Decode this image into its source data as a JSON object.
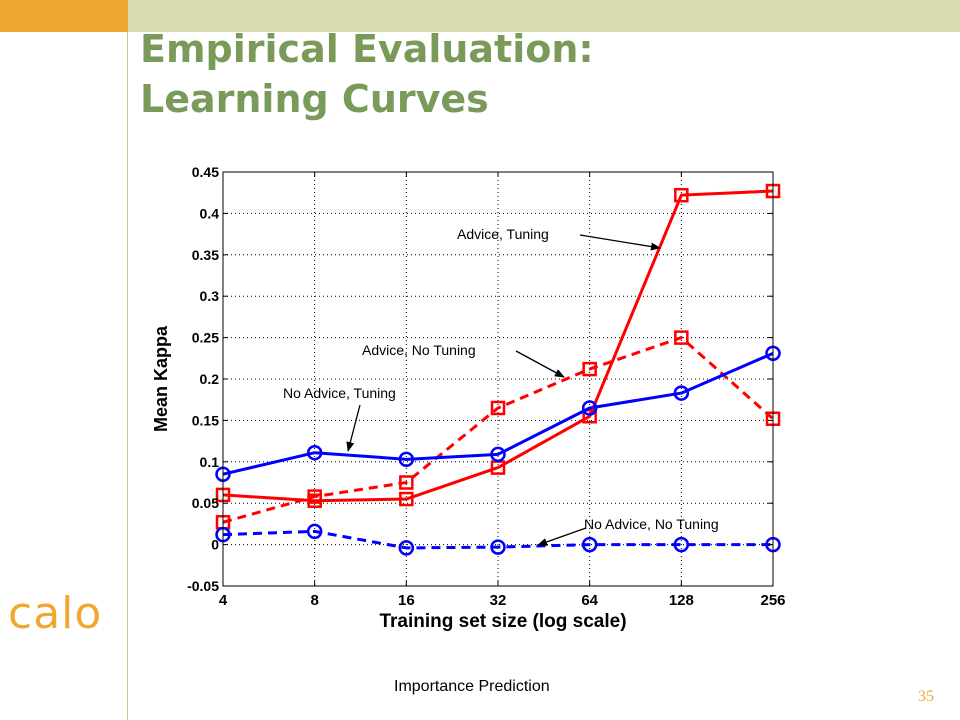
{
  "slide": {
    "title": "Empirical Evaluation:\nLearning Curves",
    "logo_text": "calo",
    "footer": "Importance Prediction",
    "page_number": "35"
  },
  "colors": {
    "top_band": "#d8dcb0",
    "corner_block": "#f0a830",
    "title": "#7a9a5a",
    "logo": "#f0a830",
    "page_number": "#f0a830",
    "series_red": "#ff0000",
    "series_blue": "#0000ff"
  },
  "chart_data": {
    "type": "line",
    "xlabel": "Training set size (log scale)",
    "ylabel": "Mean Kappa",
    "x_scale": "log2",
    "x": [
      4,
      8,
      16,
      32,
      64,
      128,
      256
    ],
    "x_tick_labels": [
      "4",
      "8",
      "16",
      "32",
      "64",
      "128",
      "256"
    ],
    "y_ticks": [
      -0.05,
      0,
      0.05,
      0.1,
      0.15,
      0.2,
      0.25,
      0.3,
      0.35,
      0.4,
      0.45
    ],
    "y_tick_labels": [
      "-0.05",
      "0",
      "0.05",
      "0.1",
      "0.15",
      "0.2",
      "0.25",
      "0.3",
      "0.35",
      "0.4",
      "0.45"
    ],
    "ylim": [
      -0.05,
      0.45
    ],
    "grid": "dotted",
    "series": [
      {
        "name": "Advice, Tuning",
        "color": "#ff0000",
        "marker": "square",
        "dash": "solid",
        "values": [
          0.06,
          0.053,
          0.055,
          0.093,
          0.155,
          0.422,
          0.427
        ]
      },
      {
        "name": "Advice, No Tuning",
        "color": "#ff0000",
        "marker": "square",
        "dash": "dashed",
        "values": [
          0.027,
          0.058,
          0.075,
          0.165,
          0.212,
          0.25,
          0.152
        ]
      },
      {
        "name": "No Advice, Tuning",
        "color": "#0000ff",
        "marker": "circle",
        "dash": "solid",
        "values": [
          0.085,
          0.111,
          0.103,
          0.109,
          0.165,
          0.183,
          0.231
        ]
      },
      {
        "name": "No Advice, No Tuning",
        "color": "#0000ff",
        "marker": "circle",
        "dash": "dashed",
        "values": [
          0.012,
          0.016,
          -0.004,
          -0.003,
          0.0,
          0.0,
          0.0
        ]
      }
    ],
    "annotations": [
      {
        "text": "Advice, Tuning",
        "series": "Advice, Tuning"
      },
      {
        "text": "Advice, No Tuning",
        "series": "Advice, No Tuning"
      },
      {
        "text": "No Advice, Tuning",
        "series": "No Advice, Tuning"
      },
      {
        "text": "No Advice, No Tuning",
        "series": "No Advice, No Tuning"
      }
    ]
  }
}
